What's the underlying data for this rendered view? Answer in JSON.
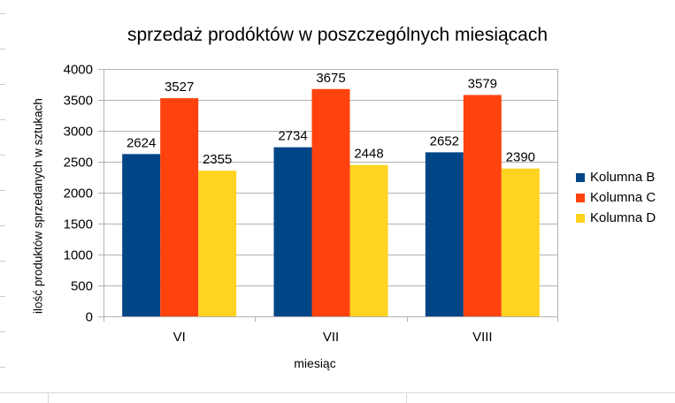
{
  "chart_data": {
    "type": "bar",
    "title": "sprzedaż prodóktów w poszczególnych miesiącach",
    "xlabel": "miesiąc",
    "ylabel": "ilość produktów sprzedanych w sztukach",
    "categories": [
      "VI",
      "VII",
      "VIII"
    ],
    "series": [
      {
        "name": "Kolumna B",
        "values": [
          2624,
          2734,
          2652
        ],
        "color": "#004586"
      },
      {
        "name": "Kolumna C",
        "values": [
          3527,
          3675,
          3579
        ],
        "color": "#ff420e"
      },
      {
        "name": "Kolumna D",
        "values": [
          2355,
          2448,
          2390
        ],
        "color": "#ffd320"
      }
    ],
    "ylim": [
      0,
      4000
    ],
    "yticks": [
      "0",
      "500",
      "1000",
      "1500",
      "2000",
      "2500",
      "3000",
      "3500",
      "4000"
    ],
    "grid": true,
    "legend_position": "right",
    "data_labels": true
  }
}
